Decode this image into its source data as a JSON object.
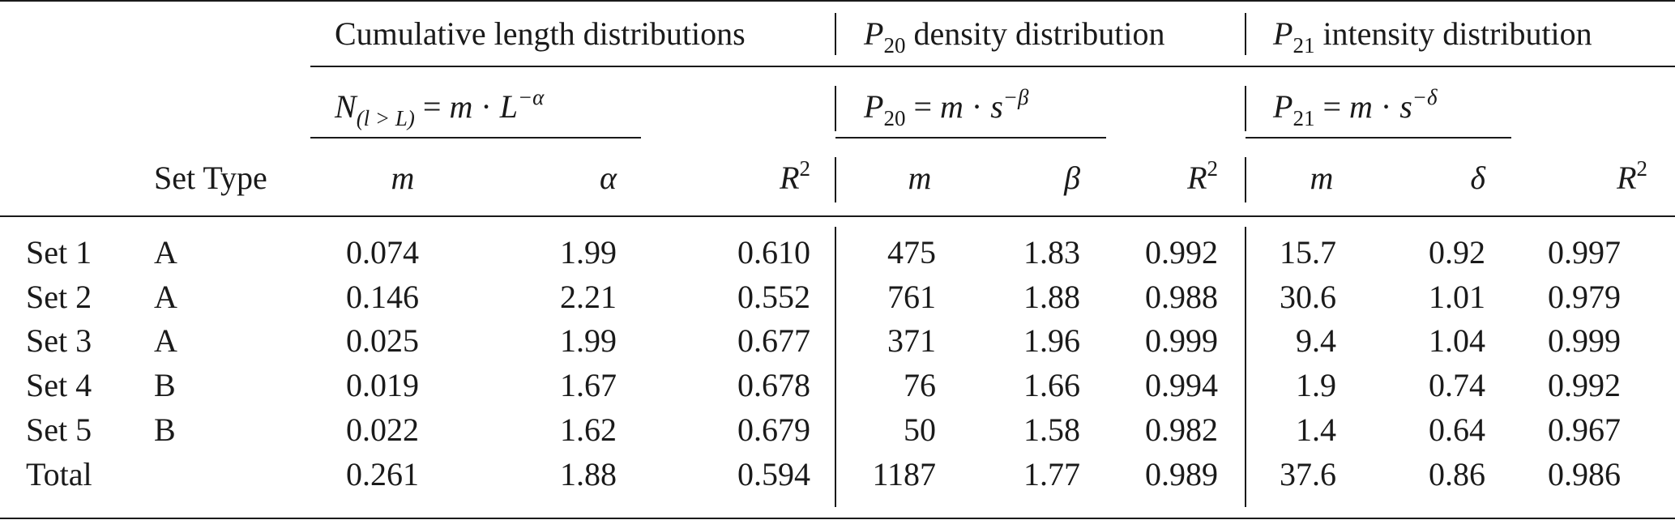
{
  "groups": [
    {
      "label": "Cumulative length distributions"
    },
    {
      "label_prefix": "P",
      "label_sub": "20",
      "label_suffix": "density distribution"
    },
    {
      "label_prefix": "P",
      "label_sub": "21",
      "label_suffix": "intensity distribution"
    }
  ],
  "formulas": [
    {
      "lhs": "N",
      "lhs_sub": "(l > L)",
      "rhs_a": "m",
      "dot": "·",
      "rhs_b": "L",
      "exp": "−α",
      "eq": "="
    },
    {
      "lhs": "P",
      "lhs_sub": "20",
      "rhs_a": "m",
      "dot": "·",
      "rhs_b": "s",
      "exp": "−β",
      "eq": "="
    },
    {
      "lhs": "P",
      "lhs_sub": "21",
      "rhs_a": "m",
      "dot": "·",
      "rhs_b": "s",
      "exp": "−δ",
      "eq": "="
    }
  ],
  "columns": {
    "set_type": "Set Type",
    "m": "m",
    "alpha": "α",
    "beta": "β",
    "delta": "δ",
    "r2": "R",
    "r2_sup": "2"
  },
  "rows": [
    {
      "name": "Set 1",
      "type": "A",
      "m1": "0.074",
      "alpha": "1.99",
      "r2a": "0.610",
      "m2": "475",
      "beta": "1.83",
      "r2b": "0.992",
      "m3": "15.7",
      "delta": "0.92",
      "r2c": "0.997"
    },
    {
      "name": "Set 2",
      "type": "A",
      "m1": "0.146",
      "alpha": "2.21",
      "r2a": "0.552",
      "m2": "761",
      "beta": "1.88",
      "r2b": "0.988",
      "m3": "30.6",
      "delta": "1.01",
      "r2c": "0.979"
    },
    {
      "name": "Set 3",
      "type": "A",
      "m1": "0.025",
      "alpha": "1.99",
      "r2a": "0.677",
      "m2": "371",
      "beta": "1.96",
      "r2b": "0.999",
      "m3": "9.4",
      "delta": "1.04",
      "r2c": "0.999"
    },
    {
      "name": "Set 4",
      "type": "B",
      "m1": "0.019",
      "alpha": "1.67",
      "r2a": "0.678",
      "m2": "76",
      "beta": "1.66",
      "r2b": "0.994",
      "m3": "1.9",
      "delta": "0.74",
      "r2c": "0.992"
    },
    {
      "name": "Set 5",
      "type": "B",
      "m1": "0.022",
      "alpha": "1.62",
      "r2a": "0.679",
      "m2": "50",
      "beta": "1.58",
      "r2b": "0.982",
      "m3": "1.4",
      "delta": "0.64",
      "r2c": "0.967"
    },
    {
      "name": "Total",
      "type": "",
      "m1": "0.261",
      "alpha": "1.88",
      "r2a": "0.594",
      "m2": "1187",
      "beta": "1.77",
      "r2b": "0.989",
      "m3": "37.6",
      "delta": "0.86",
      "r2c": "0.986"
    }
  ]
}
